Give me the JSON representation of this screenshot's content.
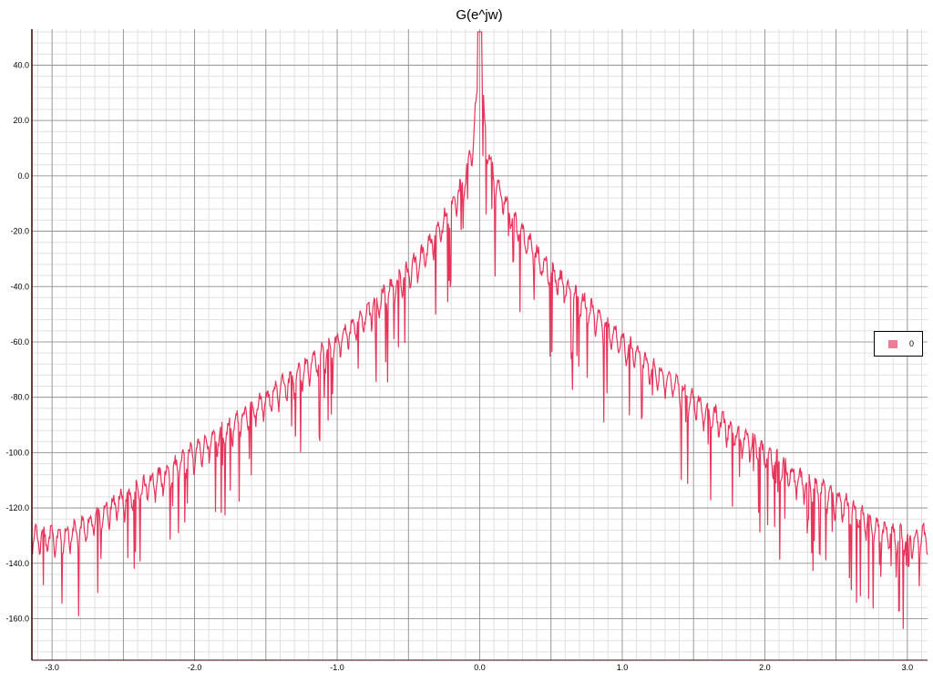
{
  "chart_data": {
    "type": "line",
    "title": "G(e^jw)",
    "xlabel": "",
    "ylabel": "",
    "xlim": [
      -3.14159,
      3.14159
    ],
    "ylim": [
      -175,
      53
    ],
    "x_ticks": [
      -3.0,
      -2.0,
      -1.0,
      0.0,
      1.0,
      2.0,
      3.0
    ],
    "x_tick_labels": [
      "-3.0",
      "-2.0",
      "-1.0",
      "0.0",
      "1.0",
      "2.0",
      "3.0"
    ],
    "y_ticks": [
      40,
      20,
      0,
      -20,
      -40,
      -60,
      -80,
      -100,
      -120,
      -140,
      -160
    ],
    "y_tick_labels": [
      "40.0",
      "20.0",
      "0.0",
      "-20.0",
      "-40.0",
      "-60.0",
      "-80.0",
      "-100.0",
      "-120.0",
      "-140.0",
      "-160.0"
    ],
    "grid": true,
    "legend_position": "right",
    "series": [
      {
        "name": "0",
        "color": "#e8335a",
        "x": [
          -3.14,
          -3.0,
          -2.8,
          -2.6,
          -2.4,
          -2.2,
          -2.0,
          -1.8,
          -1.6,
          -1.4,
          -1.2,
          -1.0,
          -0.8,
          -0.6,
          -0.5,
          -0.4,
          -0.3,
          -0.2,
          -0.1,
          -0.05,
          0.0,
          0.05,
          0.1,
          0.2,
          0.3,
          0.4,
          0.5,
          0.6,
          0.8,
          1.0,
          1.2,
          1.4,
          1.6,
          1.8,
          2.0,
          2.2,
          2.4,
          2.6,
          2.8,
          3.0,
          3.14
        ],
        "values": [
          -125,
          -126,
          -123,
          -115,
          -109,
          -103,
          -95,
          -88,
          -80,
          -72,
          -64,
          -55,
          -45,
          -35,
          -30,
          -24,
          -16,
          -7,
          4,
          16,
          45,
          16,
          4,
          -7,
          -16,
          -24,
          -30,
          -35,
          -45,
          -55,
          -64,
          -72,
          -80,
          -88,
          -95,
          -103,
          -109,
          -115,
          -123,
          -126,
          -125
        ]
      }
    ]
  },
  "legend": {
    "label": "0",
    "swatch_color": "#eb7d95"
  },
  "colors": {
    "line": "#e8335a",
    "major_grid": "#8a8a8a",
    "minor_grid": "#e0e0e0",
    "axis": "#330000"
  }
}
